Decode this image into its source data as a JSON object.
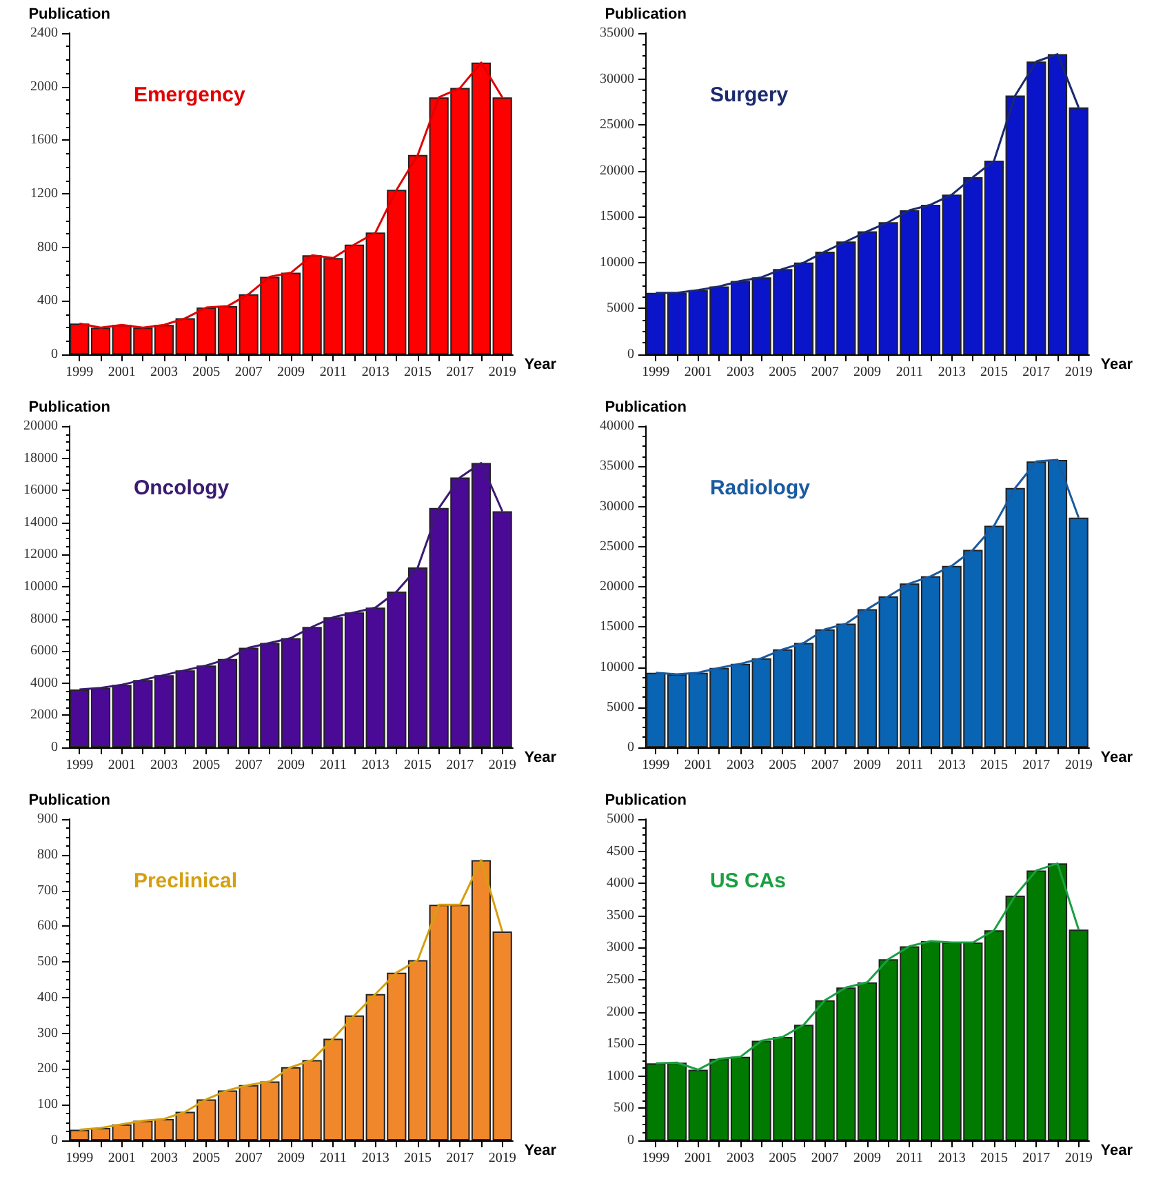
{
  "chart_data": [
    {
      "type": "bar",
      "title": "Emergency",
      "ylabel": "Publication",
      "xlabel": "Year",
      "categories": [
        "1999",
        null,
        "2001",
        null,
        "2003",
        null,
        "2005",
        null,
        "2007",
        null,
        "2009",
        null,
        "2011",
        null,
        "2013",
        null,
        "2015",
        null,
        "2017",
        null,
        "2019"
      ],
      "ylim": [
        0,
        2400
      ],
      "yticks": [
        0,
        400,
        800,
        1200,
        1600,
        2000,
        2400
      ],
      "grid": false,
      "marker": "none",
      "series": [
        {
          "color": "#ff0000",
          "values": [
            230,
            200,
            220,
            200,
            220,
            270,
            350,
            360,
            450,
            580,
            610,
            740,
            720,
            820,
            910,
            1230,
            1490,
            1920,
            1990,
            2180,
            1920
          ]
        },
        {
          "type": "line",
          "color": "#e00000",
          "values": [
            230,
            200,
            220,
            200,
            220,
            270,
            350,
            360,
            450,
            580,
            610,
            740,
            720,
            820,
            910,
            1230,
            1490,
            1920,
            1990,
            2180,
            1920
          ]
        }
      ]
    },
    {
      "type": "bar",
      "title": "Surgery",
      "ylabel": "Publication",
      "xlabel": "Year",
      "categories": [
        "1999",
        null,
        "2001",
        null,
        "2003",
        null,
        "2005",
        null,
        "2007",
        null,
        "2009",
        null,
        "2011",
        null,
        "2013",
        null,
        "2015",
        null,
        "2017",
        null,
        "2019"
      ],
      "ylim": [
        0,
        35000
      ],
      "yticks": [
        0,
        5000,
        10000,
        15000,
        20000,
        25000,
        30000,
        35000
      ],
      "grid": false,
      "marker": "none",
      "series": [
        {
          "color": "#0a14c8",
          "values": [
            6700,
            6700,
            7000,
            7400,
            8000,
            8400,
            9300,
            10000,
            11200,
            12300,
            13400,
            14400,
            15700,
            16300,
            17400,
            19300,
            21100,
            28200,
            31900,
            32700,
            26900
          ]
        },
        {
          "type": "line",
          "color": "#1a2a6e",
          "values": [
            6700,
            6700,
            7000,
            7400,
            8000,
            8400,
            9300,
            10000,
            11200,
            12300,
            13400,
            14400,
            15700,
            16300,
            17400,
            19300,
            21100,
            28200,
            31900,
            32700,
            26900
          ]
        }
      ]
    },
    {
      "type": "bar",
      "title": "Oncology",
      "ylabel": "Publication",
      "xlabel": "Year",
      "categories": [
        "1999",
        null,
        "2001",
        null,
        "2003",
        null,
        "2005",
        null,
        "2007",
        null,
        "2009",
        null,
        "2011",
        null,
        "2013",
        null,
        "2015",
        null,
        "2017",
        null,
        "2019"
      ],
      "ylim": [
        0,
        20000
      ],
      "yticks": [
        0,
        2000,
        4000,
        6000,
        8000,
        10000,
        12000,
        14000,
        16000,
        18000,
        20000
      ],
      "grid": false,
      "marker": "none",
      "series": [
        {
          "color": "#4b0a96",
          "values": [
            3600,
            3700,
            3900,
            4200,
            4500,
            4800,
            5100,
            5500,
            6200,
            6500,
            6800,
            7500,
            8100,
            8400,
            8700,
            9700,
            11200,
            14900,
            16800,
            17700,
            14700
          ]
        },
        {
          "type": "line",
          "color": "#3a1a70",
          "values": [
            3600,
            3700,
            3900,
            4200,
            4500,
            4800,
            5100,
            5500,
            6200,
            6500,
            6800,
            7500,
            8100,
            8400,
            8700,
            9700,
            11200,
            14900,
            16800,
            17700,
            14700
          ]
        }
      ]
    },
    {
      "type": "bar",
      "title": "Radiology",
      "ylabel": "Publication",
      "xlabel": "Year",
      "categories": [
        "1999",
        null,
        "2001",
        null,
        "2003",
        null,
        "2005",
        null,
        "2007",
        null,
        "2009",
        null,
        "2011",
        null,
        "2013",
        null,
        "2015",
        null,
        "2017",
        null,
        "2019"
      ],
      "ylim": [
        0,
        40000
      ],
      "yticks": [
        0,
        5000,
        10000,
        15000,
        20000,
        25000,
        30000,
        35000,
        40000
      ],
      "grid": false,
      "marker": "none",
      "series": [
        {
          "color": "#0a64b4",
          "values": [
            9300,
            9100,
            9300,
            9900,
            10400,
            11100,
            12200,
            13000,
            14700,
            15400,
            17200,
            18800,
            20400,
            21300,
            22600,
            24600,
            27600,
            32300,
            35600,
            35800,
            28600
          ]
        },
        {
          "type": "line",
          "color": "#1a5aa0",
          "values": [
            9300,
            9100,
            9300,
            9900,
            10400,
            11100,
            12200,
            13000,
            14700,
            15400,
            17200,
            18800,
            20400,
            21300,
            22600,
            24600,
            27600,
            32300,
            35600,
            35800,
            28600
          ]
        }
      ]
    },
    {
      "type": "bar",
      "title": "Preclinical",
      "ylabel": "Publication",
      "xlabel": "Year",
      "categories": [
        "1999",
        null,
        "2001",
        null,
        "2003",
        null,
        "2005",
        null,
        "2007",
        null,
        "2009",
        null,
        "2011",
        null,
        "2013",
        null,
        "2015",
        null,
        "2017",
        null,
        "2019"
      ],
      "ylim": [
        0,
        900
      ],
      "yticks": [
        0,
        100,
        200,
        300,
        400,
        500,
        600,
        700,
        800,
        900
      ],
      "grid": false,
      "marker": "none",
      "series": [
        {
          "color": "#f0872a",
          "values": [
            30,
            35,
            45,
            55,
            60,
            80,
            115,
            140,
            155,
            165,
            205,
            225,
            285,
            350,
            410,
            470,
            505,
            660,
            660,
            785,
            585
          ]
        },
        {
          "type": "line",
          "color": "#d4a010",
          "values": [
            30,
            35,
            45,
            55,
            60,
            80,
            115,
            140,
            155,
            165,
            205,
            225,
            285,
            350,
            410,
            470,
            505,
            660,
            660,
            785,
            585
          ]
        }
      ]
    },
    {
      "type": "bar",
      "title": "US CAs",
      "ylabel": "Publication",
      "xlabel": "Year",
      "categories": [
        "1999",
        null,
        "2001",
        null,
        "2003",
        null,
        "2005",
        null,
        "2007",
        null,
        "2009",
        null,
        "2011",
        null,
        "2013",
        null,
        "2015",
        null,
        "2017",
        null,
        "2019"
      ],
      "ylim": [
        0,
        5000
      ],
      "yticks": [
        0,
        500,
        1000,
        1500,
        2000,
        2500,
        3000,
        3500,
        4000,
        4500,
        5000
      ],
      "grid": false,
      "marker": "none",
      "series": [
        {
          "color": "#007a00",
          "values": [
            1200,
            1210,
            1100,
            1270,
            1300,
            1550,
            1610,
            1800,
            2180,
            2380,
            2460,
            2820,
            3020,
            3100,
            3080,
            3080,
            3270,
            3810,
            4200,
            4310,
            3280
          ]
        },
        {
          "type": "line",
          "color": "#1aa040",
          "values": [
            1200,
            1210,
            1100,
            1270,
            1300,
            1550,
            1610,
            1800,
            2180,
            2380,
            2460,
            2820,
            3020,
            3100,
            3080,
            3080,
            3270,
            3810,
            4200,
            4310,
            3280
          ]
        }
      ]
    }
  ]
}
